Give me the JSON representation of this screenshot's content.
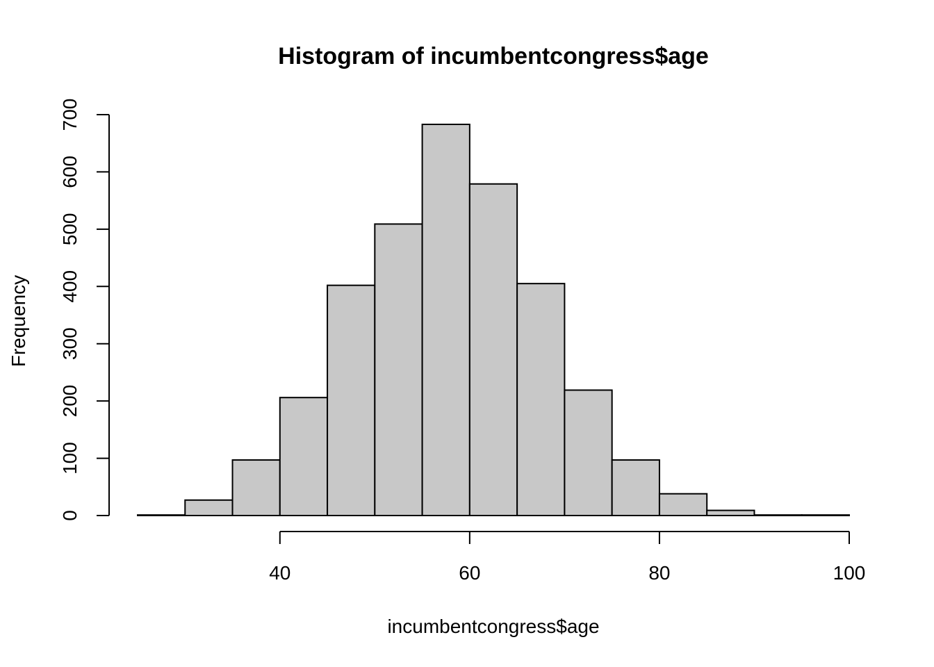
{
  "chart_data": {
    "type": "bar",
    "title": "Histogram of incumbentcongress$age",
    "xlabel": "incumbentcongress$age",
    "ylabel": "Frequency",
    "bin_edges": [
      25,
      30,
      35,
      40,
      45,
      50,
      55,
      60,
      65,
      70,
      75,
      80,
      85,
      90,
      95,
      100
    ],
    "values": [
      1,
      27,
      97,
      206,
      402,
      509,
      683,
      579,
      405,
      219,
      97,
      38,
      9,
      1,
      1
    ],
    "xlim": [
      25,
      100
    ],
    "ylim": [
      0,
      700
    ],
    "x_ticks": [
      40,
      60,
      80,
      100
    ],
    "y_ticks": [
      0,
      100,
      200,
      300,
      400,
      500,
      600,
      700
    ],
    "x_tick_labels": [
      "40",
      "60",
      "80",
      "100"
    ],
    "y_tick_labels": [
      "0",
      "100",
      "200",
      "300",
      "400",
      "500",
      "600",
      "700"
    ],
    "bar_color": "#c8c8c8",
    "grid": false,
    "legend": false
  }
}
